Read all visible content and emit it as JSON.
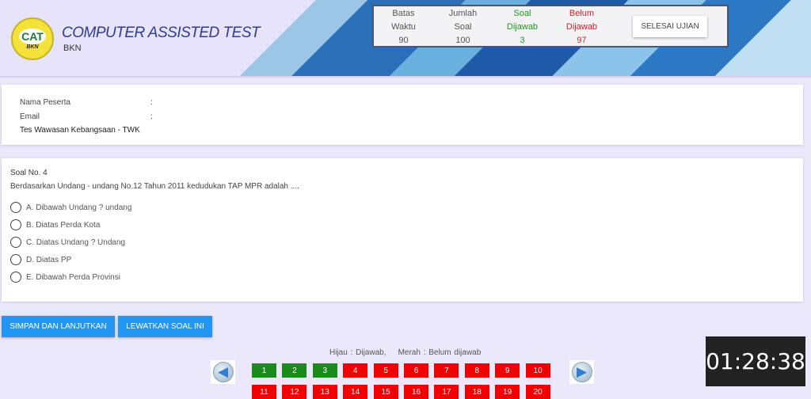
{
  "header": {
    "logo_text": "CAT",
    "logo_sub": "BKN",
    "title": "COMPUTER ASSISTED TEST",
    "subtitle": "BKN"
  },
  "stats": [
    {
      "l1": "Batas",
      "l2": "Waktu",
      "value": "90",
      "color": "gray"
    },
    {
      "l1": "Jumlah",
      "l2": "Soal",
      "value": "100",
      "color": "gray"
    },
    {
      "l1": "Soal",
      "l2": "Dijawab",
      "value": "3",
      "color": "green"
    },
    {
      "l1": "Belum",
      "l2": "Dijawab",
      "value": "97",
      "color": "red"
    }
  ],
  "finish_button": "SELESAI UJIAN",
  "participant": {
    "name_label": "Nama Peserta",
    "name_sep": ":",
    "email_label": "Email",
    "email_sep": ":",
    "test_name": "Tes Wawasan Kebangsaan - TWK"
  },
  "question": {
    "number": "Soal No. 4",
    "text": "Berdasarkan Undang - undang No.12 Tahun 2011 kedudukan TAP MPR adalah ....",
    "options": [
      "A. Dibawah Undang ? undang",
      "B. Diatas Perda Kota",
      "C. Diatas Undang ? Undang",
      "D. Diatas PP",
      "E. Dibawah Perda Provinsi"
    ]
  },
  "actions": {
    "save_next": "SIMPAN DAN LANJUTKAN",
    "skip": "LEWATKAN SOAL INI"
  },
  "legend": "Hijau : Dijawab,    Merah : Belum dijawab",
  "navigation": {
    "answered": [
      1,
      2,
      3
    ],
    "numbers": [
      1,
      2,
      3,
      4,
      5,
      6,
      7,
      8,
      9,
      10,
      11,
      12,
      13,
      14,
      15,
      16,
      17,
      18,
      19,
      20
    ],
    "answered_color": "#1a8a1a",
    "unanswered_color": "#f00000"
  },
  "timer": "01:28:38"
}
